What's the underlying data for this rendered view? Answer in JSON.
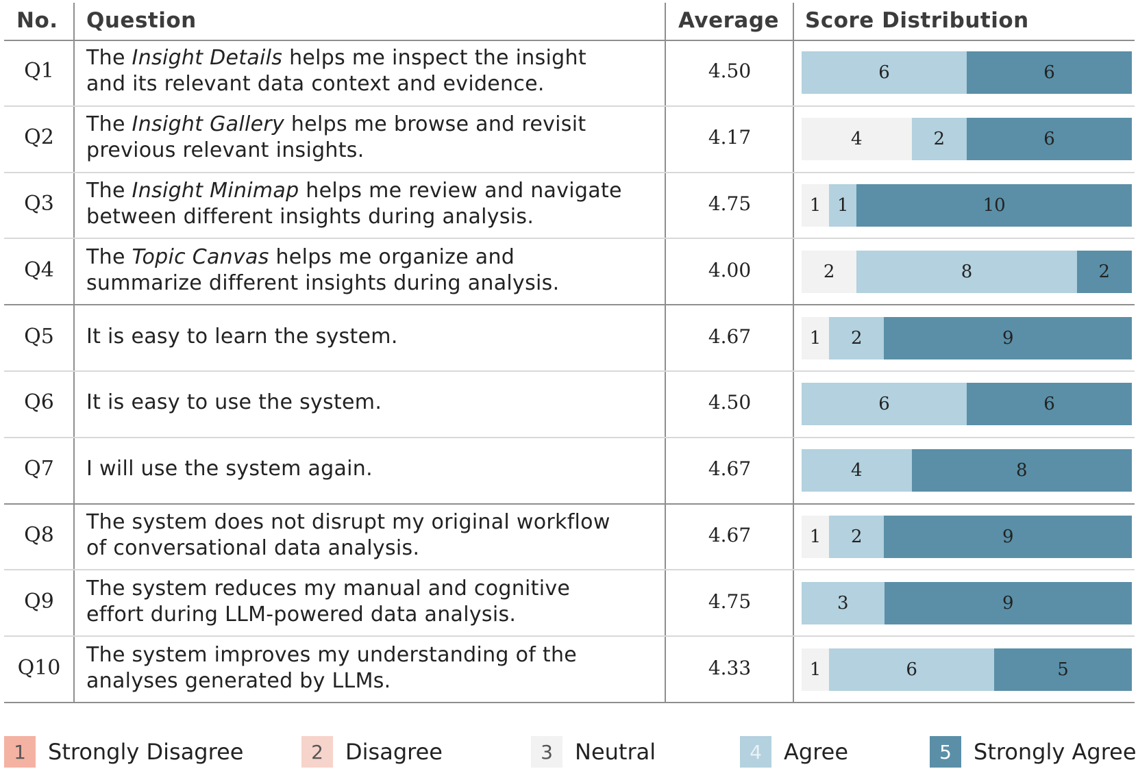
{
  "chart_data": {
    "type": "table",
    "columns": [
      "No.",
      "Question",
      "Average",
      "Score Distribution"
    ],
    "rows": [
      {
        "no": "Q1",
        "question": [
          {
            "t": "The "
          },
          {
            "t": "Insight Details",
            "i": true
          },
          {
            "t": " helps me inspect the insight"
          },
          {
            "br": true
          },
          {
            "t": "and its relevant data context and evidence."
          }
        ],
        "average": "4.50",
        "distribution": [
          0,
          0,
          0,
          6,
          6
        ]
      },
      {
        "no": "Q2",
        "question": [
          {
            "t": "The "
          },
          {
            "t": "Insight Gallery",
            "i": true
          },
          {
            "t": " helps me browse and revisit"
          },
          {
            "br": true
          },
          {
            "t": "previous relevant insights."
          }
        ],
        "average": "4.17",
        "distribution": [
          0,
          0,
          4,
          2,
          6
        ]
      },
      {
        "no": "Q3",
        "question": [
          {
            "t": "The "
          },
          {
            "t": "Insight Minimap",
            "i": true
          },
          {
            "t": " helps me review and navigate"
          },
          {
            "br": true
          },
          {
            "t": "between different insights during analysis."
          }
        ],
        "average": "4.75",
        "distribution": [
          0,
          0,
          1,
          1,
          10
        ]
      },
      {
        "no": "Q4",
        "question": [
          {
            "t": "The "
          },
          {
            "t": "Topic Canvas",
            "i": true
          },
          {
            "t": " helps me organize and"
          },
          {
            "br": true
          },
          {
            "t": "summarize different insights during analysis."
          }
        ],
        "average": "4.00",
        "distribution": [
          0,
          0,
          2,
          8,
          2
        ]
      },
      {
        "no": "Q5",
        "question": [
          {
            "t": "It is easy to learn the system."
          }
        ],
        "average": "4.67",
        "distribution": [
          0,
          0,
          1,
          2,
          9
        ]
      },
      {
        "no": "Q6",
        "question": [
          {
            "t": "It is easy to use the system."
          }
        ],
        "average": "4.50",
        "distribution": [
          0,
          0,
          0,
          6,
          6
        ]
      },
      {
        "no": "Q7",
        "question": [
          {
            "t": "I will use the system again."
          }
        ],
        "average": "4.67",
        "distribution": [
          0,
          0,
          0,
          4,
          8
        ]
      },
      {
        "no": "Q8",
        "question": [
          {
            "t": "The system does not disrupt my original workflow"
          },
          {
            "br": true
          },
          {
            "t": "of conversational data analysis."
          }
        ],
        "average": "4.67",
        "distribution": [
          0,
          0,
          1,
          2,
          9
        ]
      },
      {
        "no": "Q9",
        "question": [
          {
            "t": "The system reduces my manual and cognitive"
          },
          {
            "br": true
          },
          {
            "t": "effort during LLM-powered data analysis."
          }
        ],
        "average": "4.75",
        "distribution": [
          0,
          0,
          0,
          3,
          9
        ]
      },
      {
        "no": "Q10",
        "question": [
          {
            "t": "The system improves my understanding of the"
          },
          {
            "br": true
          },
          {
            "t": "analyses generated by LLMs."
          }
        ],
        "average": "4.33",
        "distribution": [
          0,
          0,
          1,
          6,
          5
        ]
      }
    ],
    "scale_max": 12,
    "legend": [
      {
        "value": "1",
        "label": "Strongly Disagree",
        "color": "#f4b2a3"
      },
      {
        "value": "2",
        "label": "Disagree",
        "color": "#f6d3cb"
      },
      {
        "value": "3",
        "label": "Neutral",
        "color": "#f2f2f2"
      },
      {
        "value": "4",
        "label": "Agree",
        "color": "#b3d1de"
      },
      {
        "value": "5",
        "label": "Strongly Agree",
        "color": "#5a8fa7"
      }
    ],
    "legend_placement": "bottom",
    "group_breaks_after": [
      "Q4",
      "Q7"
    ]
  }
}
